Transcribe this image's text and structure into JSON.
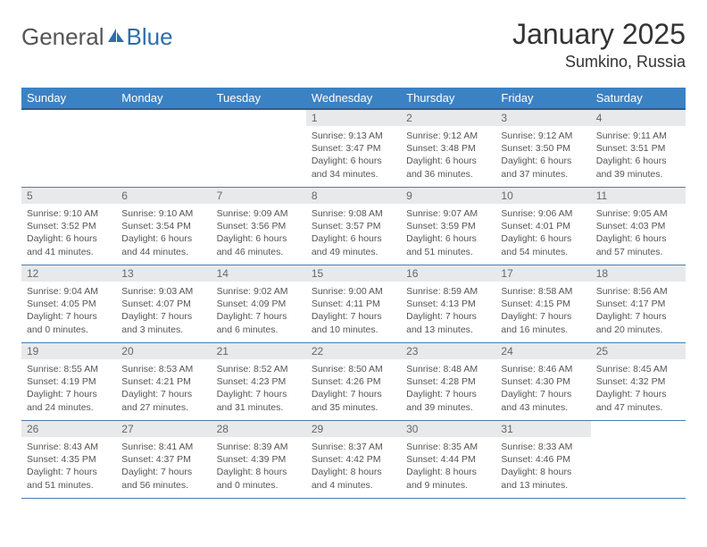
{
  "logo": {
    "general": "General",
    "blue": "Blue"
  },
  "header": {
    "month_title": "January 2025",
    "location": "Sumkino, Russia"
  },
  "colors": {
    "header_bg": "#3b82c4",
    "header_border": "#2a5f92",
    "row_border": "#4a7db0",
    "daynum_bg": "#e8e9ea",
    "logo_blue": "#2f6ea8"
  },
  "weekdays": [
    "Sunday",
    "Monday",
    "Tuesday",
    "Wednesday",
    "Thursday",
    "Friday",
    "Saturday"
  ],
  "weeks": [
    [
      null,
      null,
      null,
      {
        "n": "1",
        "sr": "9:13 AM",
        "ss": "3:47 PM",
        "dh": "6",
        "dm": "34"
      },
      {
        "n": "2",
        "sr": "9:12 AM",
        "ss": "3:48 PM",
        "dh": "6",
        "dm": "36"
      },
      {
        "n": "3",
        "sr": "9:12 AM",
        "ss": "3:50 PM",
        "dh": "6",
        "dm": "37"
      },
      {
        "n": "4",
        "sr": "9:11 AM",
        "ss": "3:51 PM",
        "dh": "6",
        "dm": "39"
      }
    ],
    [
      {
        "n": "5",
        "sr": "9:10 AM",
        "ss": "3:52 PM",
        "dh": "6",
        "dm": "41"
      },
      {
        "n": "6",
        "sr": "9:10 AM",
        "ss": "3:54 PM",
        "dh": "6",
        "dm": "44"
      },
      {
        "n": "7",
        "sr": "9:09 AM",
        "ss": "3:56 PM",
        "dh": "6",
        "dm": "46"
      },
      {
        "n": "8",
        "sr": "9:08 AM",
        "ss": "3:57 PM",
        "dh": "6",
        "dm": "49"
      },
      {
        "n": "9",
        "sr": "9:07 AM",
        "ss": "3:59 PM",
        "dh": "6",
        "dm": "51"
      },
      {
        "n": "10",
        "sr": "9:06 AM",
        "ss": "4:01 PM",
        "dh": "6",
        "dm": "54"
      },
      {
        "n": "11",
        "sr": "9:05 AM",
        "ss": "4:03 PM",
        "dh": "6",
        "dm": "57"
      }
    ],
    [
      {
        "n": "12",
        "sr": "9:04 AM",
        "ss": "4:05 PM",
        "dh": "7",
        "dm": "0"
      },
      {
        "n": "13",
        "sr": "9:03 AM",
        "ss": "4:07 PM",
        "dh": "7",
        "dm": "3"
      },
      {
        "n": "14",
        "sr": "9:02 AM",
        "ss": "4:09 PM",
        "dh": "7",
        "dm": "6"
      },
      {
        "n": "15",
        "sr": "9:00 AM",
        "ss": "4:11 PM",
        "dh": "7",
        "dm": "10"
      },
      {
        "n": "16",
        "sr": "8:59 AM",
        "ss": "4:13 PM",
        "dh": "7",
        "dm": "13"
      },
      {
        "n": "17",
        "sr": "8:58 AM",
        "ss": "4:15 PM",
        "dh": "7",
        "dm": "16"
      },
      {
        "n": "18",
        "sr": "8:56 AM",
        "ss": "4:17 PM",
        "dh": "7",
        "dm": "20"
      }
    ],
    [
      {
        "n": "19",
        "sr": "8:55 AM",
        "ss": "4:19 PM",
        "dh": "7",
        "dm": "24"
      },
      {
        "n": "20",
        "sr": "8:53 AM",
        "ss": "4:21 PM",
        "dh": "7",
        "dm": "27"
      },
      {
        "n": "21",
        "sr": "8:52 AM",
        "ss": "4:23 PM",
        "dh": "7",
        "dm": "31"
      },
      {
        "n": "22",
        "sr": "8:50 AM",
        "ss": "4:26 PM",
        "dh": "7",
        "dm": "35"
      },
      {
        "n": "23",
        "sr": "8:48 AM",
        "ss": "4:28 PM",
        "dh": "7",
        "dm": "39"
      },
      {
        "n": "24",
        "sr": "8:46 AM",
        "ss": "4:30 PM",
        "dh": "7",
        "dm": "43"
      },
      {
        "n": "25",
        "sr": "8:45 AM",
        "ss": "4:32 PM",
        "dh": "7",
        "dm": "47"
      }
    ],
    [
      {
        "n": "26",
        "sr": "8:43 AM",
        "ss": "4:35 PM",
        "dh": "7",
        "dm": "51"
      },
      {
        "n": "27",
        "sr": "8:41 AM",
        "ss": "4:37 PM",
        "dh": "7",
        "dm": "56"
      },
      {
        "n": "28",
        "sr": "8:39 AM",
        "ss": "4:39 PM",
        "dh": "8",
        "dm": "0"
      },
      {
        "n": "29",
        "sr": "8:37 AM",
        "ss": "4:42 PM",
        "dh": "8",
        "dm": "4"
      },
      {
        "n": "30",
        "sr": "8:35 AM",
        "ss": "4:44 PM",
        "dh": "8",
        "dm": "9"
      },
      {
        "n": "31",
        "sr": "8:33 AM",
        "ss": "4:46 PM",
        "dh": "8",
        "dm": "13"
      },
      null
    ]
  ],
  "labels": {
    "sunrise": "Sunrise:",
    "sunset": "Sunset:",
    "daylight": "Daylight:",
    "hours": "hours",
    "and": "and",
    "minutes": "minutes."
  }
}
